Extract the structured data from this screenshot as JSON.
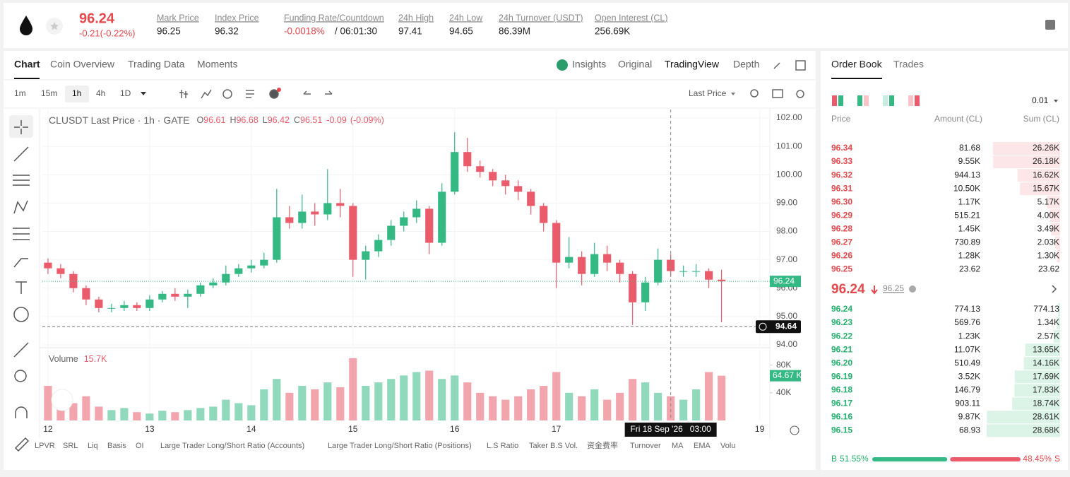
{
  "header": {
    "price": "96.24",
    "change": "-0.21(-0.22%)",
    "stats": [
      {
        "label": "Mark Price",
        "value": "96.25"
      },
      {
        "label": "Index Price",
        "value": "96.32"
      },
      {
        "label": "Funding Rate/Countdown",
        "value": "-0.0018%",
        "countdown": "/ 06:01:30"
      },
      {
        "label": "24h High",
        "value": "97.41"
      },
      {
        "label": "24h Low",
        "value": "94.65"
      },
      {
        "label": "24h Turnover (USDT)",
        "value": "86.39M"
      },
      {
        "label": "Open Interest (CL)",
        "value": "256.69K"
      }
    ]
  },
  "tabs": {
    "left": [
      "Chart",
      "Coin Overview",
      "Trading Data",
      "Moments"
    ],
    "right": [
      "Insights",
      "Original",
      "TradingView",
      "Depth"
    ]
  },
  "toolbar": {
    "intervals": [
      "1m",
      "15m",
      "1h",
      "4h",
      "1D"
    ],
    "price_type": "Last Price"
  },
  "chart_data": {
    "type": "candlestick",
    "title": "CLUSDT Last Price · 1h · GATE",
    "ohlc_legend": {
      "labels": [
        "O",
        "H",
        "L",
        "C"
      ],
      "values": [
        96.61,
        96.68,
        96.42,
        96.51
      ],
      "change": -0.09,
      "change_pct": "(-0.09%)"
    },
    "up_color": "#34b985",
    "down_color": "#ea5b6b",
    "open": [
      96.9,
      96.7,
      96.5,
      96.0,
      95.6,
      95.3,
      95.3,
      95.4,
      95.3,
      95.6,
      95.8,
      95.7,
      95.8,
      96.1,
      96.2,
      96.5,
      96.7,
      96.8,
      97.0,
      98.5,
      98.3,
      98.7,
      98.6,
      99.0,
      98.9,
      97.0,
      97.3,
      97.7,
      98.2,
      98.5,
      98.8,
      97.6,
      99.4,
      100.8,
      100.3,
      100.1,
      99.8,
      99.6,
      99.4,
      98.9,
      98.3,
      96.9,
      97.1,
      96.5,
      97.2,
      96.9,
      96.5,
      95.5,
      96.2,
      97.0,
      96.6,
      96.6,
      96.6,
      96.3
    ],
    "high": [
      97.05,
      96.85,
      96.6,
      96.1,
      95.7,
      95.45,
      95.55,
      95.5,
      95.75,
      95.9,
      96.0,
      95.95,
      96.2,
      96.35,
      96.8,
      96.85,
      97.0,
      97.25,
      99.5,
      98.9,
      99.3,
      99.0,
      100.2,
      99.5,
      99.0,
      97.5,
      97.9,
      98.4,
      98.7,
      99.1,
      98.9,
      99.7,
      101.5,
      101.3,
      100.5,
      100.2,
      100.0,
      99.8,
      99.5,
      99.0,
      98.4,
      97.8,
      97.3,
      97.6,
      97.5,
      97.0,
      96.6,
      96.4,
      97.4,
      97.2,
      96.8,
      96.85,
      96.7,
      96.65
    ],
    "low": [
      96.5,
      96.35,
      95.85,
      95.4,
      95.15,
      95.15,
      95.2,
      95.2,
      95.2,
      95.5,
      95.55,
      95.3,
      95.7,
      96.0,
      96.1,
      96.4,
      96.55,
      96.7,
      96.9,
      98.1,
      98.1,
      98.2,
      98.4,
      98.5,
      96.4,
      96.3,
      97.1,
      97.5,
      98.0,
      98.3,
      97.2,
      97.5,
      99.3,
      100.1,
      99.9,
      99.6,
      99.3,
      99.1,
      98.6,
      98.0,
      96.0,
      96.7,
      96.1,
      96.4,
      96.6,
      96.2,
      94.7,
      95.2,
      96.1,
      96.4,
      96.4,
      96.4,
      96.0,
      94.8
    ],
    "close": [
      96.7,
      96.5,
      96.0,
      95.6,
      95.3,
      95.3,
      95.4,
      95.3,
      95.6,
      95.8,
      95.7,
      95.8,
      96.1,
      96.2,
      96.5,
      96.7,
      96.8,
      97.0,
      98.5,
      98.3,
      98.7,
      98.6,
      99.0,
      98.9,
      97.0,
      97.3,
      97.7,
      98.2,
      98.5,
      98.8,
      97.6,
      99.4,
      100.8,
      100.3,
      100.1,
      99.8,
      99.6,
      99.4,
      98.9,
      98.3,
      96.9,
      97.1,
      96.5,
      97.2,
      96.9,
      96.5,
      95.5,
      96.2,
      97.0,
      96.6,
      96.6,
      96.6,
      96.3,
      96.24
    ],
    "volume": {
      "name": "Volume",
      "value_label": "15.7K",
      "values": [
        50000,
        30000,
        25000,
        35000,
        20000,
        15000,
        18000,
        12000,
        10000,
        14000,
        12000,
        15000,
        18000,
        20000,
        30000,
        25000,
        22000,
        45000,
        60000,
        40000,
        50000,
        45000,
        55000,
        48000,
        90000,
        50000,
        55000,
        60000,
        65000,
        70000,
        72000,
        60000,
        65000,
        55000,
        40000,
        35000,
        30000,
        35000,
        45000,
        50000,
        70000,
        40000,
        35000,
        45000,
        30000,
        40000,
        60000,
        55000,
        40000,
        35000,
        30000,
        45000,
        70000,
        64670
      ],
      "ylim": [
        0,
        97000
      ],
      "yticks": [
        {
          "value": 40000,
          "label": "40K"
        },
        {
          "value": 80000,
          "label": "80K"
        }
      ]
    },
    "xlim": [
      -0.44,
      56.8
    ],
    "xticks": [
      {
        "value": 0,
        "label": "12"
      },
      {
        "value": 8,
        "label": "13"
      },
      {
        "value": 16,
        "label": "14"
      },
      {
        "value": 24,
        "label": "15"
      },
      {
        "value": 32,
        "label": "16"
      },
      {
        "value": 40,
        "label": "17"
      },
      {
        "value": 56,
        "label": "19"
      }
    ],
    "ylim": [
      93.9,
      102.3
    ],
    "yticks": [
      {
        "value": 94,
        "label": "94.00"
      },
      {
        "value": 95,
        "label": "95.00"
      },
      {
        "value": 96,
        "label": "96.00"
      },
      {
        "value": 97,
        "label": "97.00"
      },
      {
        "value": 98,
        "label": "98.00"
      },
      {
        "value": 99,
        "label": "99.00"
      },
      {
        "value": 100,
        "label": "100.00"
      },
      {
        "value": 101,
        "label": "101.00"
      },
      {
        "value": 102,
        "label": "102.00"
      }
    ],
    "grid": true,
    "annotations": {
      "last_price": {
        "value": 96.24,
        "label": "96.24"
      },
      "low_line": {
        "value": 94.64,
        "label": "94.64"
      },
      "last_volume": {
        "value": 64670,
        "label": "64.67 K"
      },
      "crosshair": {
        "x": 49,
        "label": "Fri 18 Sep '26   03:00"
      }
    }
  },
  "indicators": [
    "LPVR",
    "SRL",
    "Liq",
    "Basis",
    "OI",
    "Large Trader Long/Short Ratio (Accounts)",
    "Large Trader Long/Short Ratio (Positions)",
    "L.S Ratio",
    "Taker B.S Vol.",
    "资金费率",
    "Turnover",
    "MA",
    "EMA",
    "Volu"
  ],
  "order_book": {
    "tabs": [
      "Order Book",
      "Trades"
    ],
    "precision": "0.01",
    "columns": [
      "Price",
      "Amount (CL)",
      "Sum (CL)"
    ],
    "asks": [
      [
        "96.34",
        "81.68",
        "26.26K"
      ],
      [
        "96.33",
        "9.55K",
        "26.18K"
      ],
      [
        "96.32",
        "944.13",
        "16.62K"
      ],
      [
        "96.31",
        "10.50K",
        "15.67K"
      ],
      [
        "96.30",
        "1.17K",
        "5.17K"
      ],
      [
        "96.29",
        "515.21",
        "4.00K"
      ],
      [
        "96.28",
        "1.45K",
        "3.49K"
      ],
      [
        "96.27",
        "730.89",
        "2.03K"
      ],
      [
        "96.26",
        "1.28K",
        "1.30K"
      ],
      [
        "96.25",
        "23.62",
        "23.62"
      ]
    ],
    "mid": {
      "price": "96.24",
      "mark": "96.25"
    },
    "bids": [
      [
        "96.24",
        "774.13",
        "774.13"
      ],
      [
        "96.23",
        "569.76",
        "1.34K"
      ],
      [
        "96.22",
        "1.23K",
        "2.57K"
      ],
      [
        "96.21",
        "11.07K",
        "13.65K"
      ],
      [
        "96.20",
        "510.49",
        "14.16K"
      ],
      [
        "96.19",
        "3.52K",
        "17.69K"
      ],
      [
        "96.18",
        "146.79",
        "17.83K"
      ],
      [
        "96.17",
        "903.11",
        "18.74K"
      ],
      [
        "96.16",
        "9.87K",
        "28.61K"
      ],
      [
        "96.15",
        "68.93",
        "28.68K"
      ]
    ],
    "buy_label": "B",
    "buy": "51.55%",
    "sell": "48.45%",
    "sell_label": "S"
  }
}
